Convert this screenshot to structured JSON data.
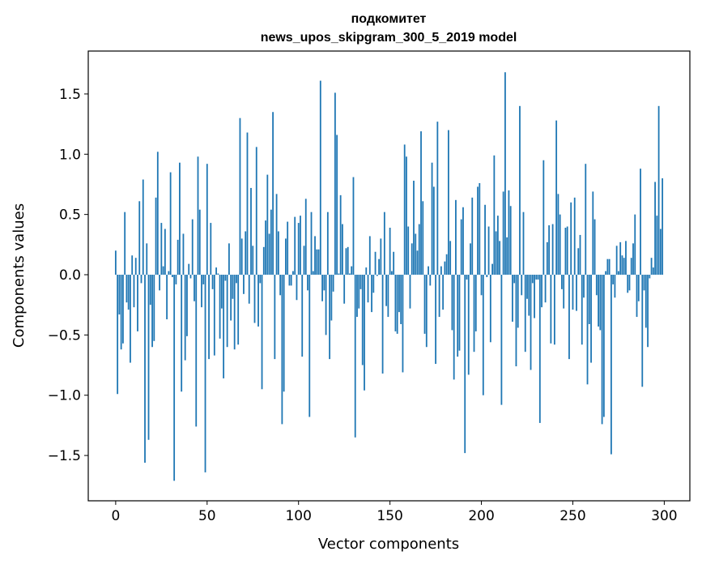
{
  "chart_data": {
    "type": "bar",
    "title_lines": [
      "подкомитет",
      "news_upos_skipgram_300_5_2019 model"
    ],
    "xlabel": "Vector components",
    "ylabel": "Components values",
    "xlim": [
      -15,
      314
    ],
    "ylim": [
      -1.876,
      1.856
    ],
    "xticks": [
      0,
      50,
      100,
      150,
      200,
      250,
      300
    ],
    "xtick_labels": [
      "0",
      "50",
      "100",
      "150",
      "200",
      "250",
      "300"
    ],
    "yticks": [
      -1.5,
      -1.0,
      -0.5,
      0.0,
      0.5,
      1.0,
      1.5
    ],
    "ytick_labels": [
      "−1.5",
      "−1.0",
      "−0.5",
      "0.0",
      "0.5",
      "1.0",
      "1.5"
    ],
    "grid": false,
    "bar_color": "#1f77b4",
    "values": [
      0.2,
      -0.99,
      -0.33,
      -0.62,
      -0.57,
      0.52,
      -0.23,
      -0.29,
      -0.73,
      0.16,
      -0.27,
      0.14,
      -0.47,
      0.61,
      -0.07,
      0.79,
      -1.56,
      0.26,
      -1.37,
      -0.25,
      -0.6,
      -0.55,
      0.64,
      1.02,
      -0.13,
      0.43,
      0.07,
      0.38,
      -0.37,
      0.03,
      0.85,
      -0.02,
      -1.71,
      -0.08,
      0.29,
      0.93,
      -0.97,
      0.34,
      -0.71,
      -0.51,
      0.09,
      -0.03,
      0.46,
      -0.22,
      -1.26,
      0.98,
      0.54,
      -0.27,
      -0.08,
      -1.64,
      0.92,
      -0.7,
      0.43,
      -0.12,
      -0.67,
      0.06,
      0.01,
      -0.53,
      -0.28,
      -0.86,
      -0.05,
      -0.6,
      0.26,
      -0.38,
      -0.2,
      -0.62,
      -0.07,
      -0.58,
      1.3,
      0.3,
      -0.16,
      0.36,
      1.18,
      -0.24,
      0.72,
      0.24,
      -0.4,
      1.06,
      -0.43,
      -0.07,
      -0.95,
      0.23,
      0.45,
      0.83,
      0.34,
      0.54,
      1.35,
      -0.7,
      0.67,
      0.36,
      -0.17,
      -1.24,
      -0.97,
      0.3,
      0.44,
      -0.09,
      -0.09,
      0.03,
      0.48,
      -0.21,
      0.43,
      0.49,
      -0.68,
      0.24,
      0.63,
      -0.13,
      -1.18,
      0.52,
      0.03,
      0.32,
      0.21,
      0.21,
      1.61,
      -0.22,
      -0.13,
      -0.5,
      0.52,
      -0.7,
      -0.38,
      -0.14,
      1.51,
      1.16,
      0.01,
      0.66,
      0.42,
      -0.24,
      0.22,
      0.23,
      0.01,
      0.07,
      0.81,
      -1.35,
      -0.35,
      -0.28,
      -0.12,
      -0.75,
      -0.96,
      0.06,
      -0.23,
      0.32,
      -0.31,
      -0.15,
      0.19,
      -0.01,
      0.13,
      0.3,
      -0.82,
      0.52,
      -0.26,
      -0.35,
      0.39,
      0.03,
      0.19,
      -0.47,
      -0.49,
      -0.31,
      -0.41,
      -0.81,
      1.08,
      0.98,
      0.4,
      -0.28,
      0.26,
      0.78,
      0.34,
      0.2,
      0.42,
      1.19,
      0.61,
      -0.49,
      -0.6,
      0.07,
      -0.09,
      0.93,
      0.73,
      -0.74,
      1.27,
      -0.35,
      0.07,
      -0.29,
      0.11,
      0.17,
      1.2,
      0.28,
      -0.46,
      -0.87,
      0.62,
      -0.68,
      -0.63,
      0.46,
      0.56,
      -1.48,
      -0.04,
      -0.83,
      0.26,
      0.64,
      -0.64,
      -0.47,
      0.73,
      0.76,
      -0.17,
      -1.0,
      0.58,
      -0.02,
      0.4,
      -0.56,
      0.09,
      0.99,
      0.36,
      0.49,
      0.28,
      -1.08,
      0.69,
      1.68,
      0.31,
      0.7,
      0.57,
      -0.39,
      -0.07,
      -0.76,
      -0.44,
      1.4,
      -0.17,
      0.52,
      -0.64,
      -0.2,
      -0.34,
      -0.79,
      -0.07,
      -0.36,
      -0.04,
      -0.04,
      -1.23,
      -0.27,
      0.95,
      -0.23,
      0.27,
      0.41,
      -0.57,
      0.42,
      -0.58,
      1.28,
      0.67,
      0.5,
      -0.12,
      -0.28,
      0.39,
      0.4,
      -0.7,
      0.6,
      -0.29,
      0.64,
      -0.3,
      0.22,
      0.33,
      -0.58,
      -0.19,
      0.92,
      -0.91,
      -0.41,
      -0.73,
      0.69,
      0.46,
      -0.17,
      -0.43,
      -0.46,
      -1.24,
      -1.18,
      0.03,
      0.13,
      0.13,
      -1.49,
      -0.08,
      -0.19,
      0.24,
      0.03,
      0.27,
      0.16,
      0.14,
      0.28,
      -0.15,
      -0.13,
      0.14,
      0.26,
      0.5,
      -0.35,
      -0.22,
      0.88,
      -0.93,
      -0.13,
      -0.44,
      -0.6,
      -0.03,
      0.14,
      0.06,
      0.77,
      0.49,
      1.4,
      0.38,
      0.8
    ]
  }
}
